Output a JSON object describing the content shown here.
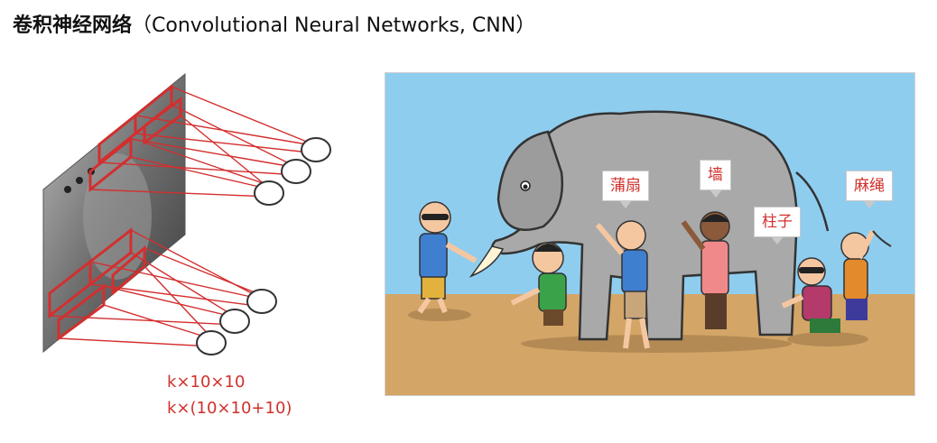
{
  "slide": {
    "title_cn": "卷积神经网络",
    "title_en": "（Convolutional Neural Networks, CNN）"
  },
  "formulas": {
    "line1": "k×10×10",
    "line2": "k×(10×10+10)"
  },
  "cartoon": {
    "labels": {
      "fan": "蒲扇",
      "wall": "墙",
      "pillar": "柱子",
      "rope": "麻绳"
    },
    "colors": {
      "sky": "#8fcdef",
      "ground": "#d3a567",
      "elephant": "#a9a9a9"
    }
  },
  "cnn_figure": {
    "colors": {
      "connection": "#d32f2f",
      "image": "#8a8a8a"
    }
  }
}
